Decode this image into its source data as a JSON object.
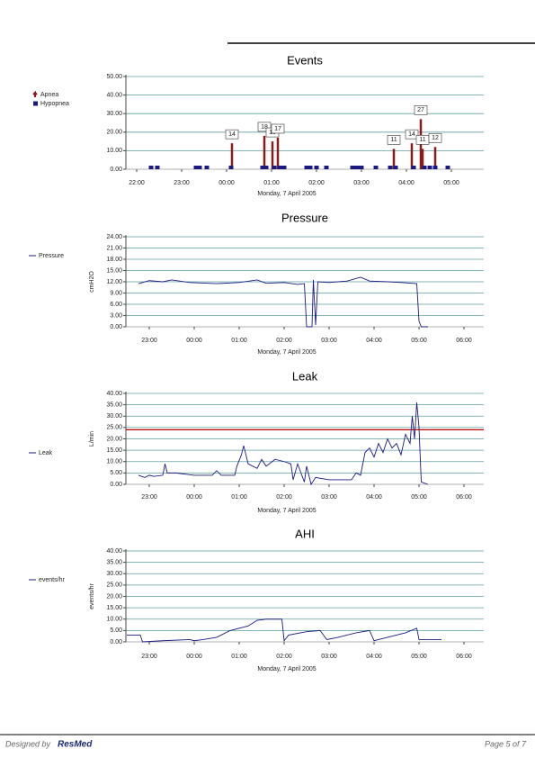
{
  "chart_data": [
    {
      "type": "stem",
      "title": "Events",
      "xlabel": "Monday, 7 April 2005",
      "xlim": [
        21.76,
        29.72
      ],
      "xticks": [
        {
          "value": 22,
          "label": "22:00"
        },
        {
          "value": 23,
          "label": "23:00"
        },
        {
          "value": 24,
          "label": "00:00"
        },
        {
          "value": 25,
          "label": "01:00"
        },
        {
          "value": 26,
          "label": "02:00"
        },
        {
          "value": 27,
          "label": "03:00"
        },
        {
          "value": 28,
          "label": "04:00"
        },
        {
          "value": 29,
          "label": "05:00"
        }
      ],
      "ylim": [
        0,
        50
      ],
      "yticks": [
        {
          "value": 0,
          "label": "0.00"
        },
        {
          "value": 10,
          "label": "10.00"
        },
        {
          "value": 20,
          "label": "20.00"
        },
        {
          "value": 30,
          "label": "30.00"
        },
        {
          "value": 40,
          "label": "40.00"
        },
        {
          "value": 50,
          "label": "50.00"
        }
      ],
      "grid": true,
      "series": [
        {
          "name": "Apnea",
          "color": "#8b1a1a",
          "marker": "stem",
          "x": [
            24.12,
            24.84,
            25.02,
            25.14,
            27.72,
            28.12,
            28.32,
            28.36,
            28.64
          ],
          "values": [
            14,
            18,
            15,
            17,
            11,
            14,
            27,
            11,
            12
          ]
        },
        {
          "name": "Hypopnea",
          "color": "#1a1a80",
          "marker": "square",
          "x": [
            22.32,
            22.46,
            23.32,
            23.4,
            23.56,
            24.1,
            24.8,
            24.88,
            25.06,
            25.18,
            25.28,
            25.78,
            25.86,
            26.0,
            26.22,
            26.8,
            26.9,
            27.0,
            27.32,
            27.64,
            27.76,
            28.16,
            28.4,
            28.52,
            28.64,
            28.92
          ],
          "values": [
            0,
            0,
            0,
            0,
            0,
            0,
            0,
            0,
            0,
            0,
            0,
            0,
            0,
            0,
            0,
            0,
            0,
            0,
            0,
            0,
            0,
            0,
            0,
            0,
            0,
            0
          ]
        }
      ]
    },
    {
      "type": "line",
      "title": "Pressure",
      "ylabel": "cmH2O",
      "xlabel": "Monday, 7 April 2005",
      "xlim": [
        22.48,
        30.44
      ],
      "xticks": [
        {
          "value": 23,
          "label": "23:00"
        },
        {
          "value": 24,
          "label": "00:00"
        },
        {
          "value": 25,
          "label": "01:00"
        },
        {
          "value": 26,
          "label": "02:00"
        },
        {
          "value": 27,
          "label": "03:00"
        },
        {
          "value": 28,
          "label": "04:00"
        },
        {
          "value": 29,
          "label": "05:00"
        },
        {
          "value": 30,
          "label": "06:00"
        }
      ],
      "ylim": [
        0,
        24
      ],
      "yticks": [
        {
          "value": 0,
          "label": "0.00"
        },
        {
          "value": 3,
          "label": "3.00"
        },
        {
          "value": 6,
          "label": "6.00"
        },
        {
          "value": 9,
          "label": "9.00"
        },
        {
          "value": 12,
          "label": "12.00"
        },
        {
          "value": 15,
          "label": "15.00"
        },
        {
          "value": 18,
          "label": "18.00"
        },
        {
          "value": 21,
          "label": "21.00"
        },
        {
          "value": 24,
          "label": "24.00"
        }
      ],
      "grid": true,
      "series": [
        {
          "name": "Pressure",
          "color": "#1a1a80",
          "x": [
            22.76,
            23.0,
            23.3,
            23.5,
            23.9,
            24.5,
            25.0,
            25.4,
            25.6,
            26.0,
            26.3,
            26.45,
            26.5,
            26.62,
            26.65,
            26.7,
            26.75,
            27.0,
            27.4,
            27.7,
            27.9,
            28.3,
            28.6,
            28.95,
            29.0,
            29.05,
            29.2
          ],
          "values": [
            11.5,
            12.3,
            12.0,
            12.5,
            11.8,
            11.5,
            11.8,
            12.5,
            11.6,
            11.8,
            11.3,
            11.5,
            0,
            0,
            12.5,
            0.5,
            12,
            11.8,
            12.2,
            13.2,
            12.2,
            12.0,
            11.8,
            11.5,
            1.5,
            0,
            0
          ]
        }
      ]
    },
    {
      "type": "line",
      "title": "Leak",
      "ylabel": "L/min",
      "xlabel": "Monday, 7 April 2005",
      "xlim": [
        22.48,
        30.44
      ],
      "xticks": [
        {
          "value": 23,
          "label": "23:00"
        },
        {
          "value": 24,
          "label": "00:00"
        },
        {
          "value": 25,
          "label": "01:00"
        },
        {
          "value": 26,
          "label": "02:00"
        },
        {
          "value": 27,
          "label": "03:00"
        },
        {
          "value": 28,
          "label": "04:00"
        },
        {
          "value": 29,
          "label": "05:00"
        },
        {
          "value": 30,
          "label": "06:00"
        }
      ],
      "ylim": [
        0,
        40
      ],
      "yticks": [
        {
          "value": 0,
          "label": "0.00"
        },
        {
          "value": 5,
          "label": "5.00"
        },
        {
          "value": 10,
          "label": "10.00"
        },
        {
          "value": 15,
          "label": "15.00"
        },
        {
          "value": 20,
          "label": "20.00"
        },
        {
          "value": 25,
          "label": "25.00"
        },
        {
          "value": 30,
          "label": "30.00"
        },
        {
          "value": 35,
          "label": "35.00"
        },
        {
          "value": 40,
          "label": "40.00"
        }
      ],
      "grid": true,
      "reference_line": {
        "value": 24,
        "color": "#c00000"
      },
      "series": [
        {
          "name": "Leak",
          "color": "#1a1a80",
          "x": [
            22.76,
            22.9,
            23.0,
            23.1,
            23.3,
            23.35,
            23.4,
            23.6,
            23.8,
            24.0,
            24.4,
            24.5,
            24.6,
            24.9,
            24.95,
            25.05,
            25.1,
            25.2,
            25.4,
            25.5,
            25.6,
            25.8,
            26.0,
            26.15,
            26.2,
            26.3,
            26.45,
            26.5,
            26.6,
            26.7,
            27.0,
            27.3,
            27.5,
            27.6,
            27.7,
            27.8,
            27.9,
            28.0,
            28.1,
            28.2,
            28.3,
            28.4,
            28.5,
            28.6,
            28.7,
            28.8,
            28.85,
            28.9,
            28.95,
            29.0,
            29.05,
            29.2
          ],
          "values": [
            4,
            3,
            4,
            3.5,
            4,
            9,
            5,
            5,
            4.5,
            4,
            4,
            6,
            4,
            4,
            8,
            13,
            17,
            9,
            7,
            11,
            8,
            11,
            10,
            9,
            2,
            9,
            1,
            8,
            0,
            3,
            2,
            2,
            2,
            5,
            4,
            14,
            16,
            12,
            18,
            14,
            20,
            16,
            18,
            13,
            22,
            18,
            30,
            20,
            36,
            25,
            1,
            0
          ]
        }
      ]
    },
    {
      "type": "line",
      "title": "AHI",
      "ylabel": "events/hr",
      "xlabel": "Monday, 7 April 2005",
      "xlim": [
        22.48,
        30.44
      ],
      "xticks": [
        {
          "value": 23,
          "label": "23:00"
        },
        {
          "value": 24,
          "label": "00:00"
        },
        {
          "value": 25,
          "label": "01:00"
        },
        {
          "value": 26,
          "label": "02:00"
        },
        {
          "value": 27,
          "label": "03:00"
        },
        {
          "value": 28,
          "label": "04:00"
        },
        {
          "value": 29,
          "label": "05:00"
        },
        {
          "value": 30,
          "label": "06:00"
        }
      ],
      "ylim": [
        0,
        40
      ],
      "yticks": [
        {
          "value": 0,
          "label": "0.00"
        },
        {
          "value": 5,
          "label": "5.00"
        },
        {
          "value": 10,
          "label": "10.00"
        },
        {
          "value": 15,
          "label": "15.00"
        },
        {
          "value": 20,
          "label": "20.00"
        },
        {
          "value": 25,
          "label": "25.00"
        },
        {
          "value": 30,
          "label": "30.00"
        },
        {
          "value": 35,
          "label": "35.00"
        },
        {
          "value": 40,
          "label": "40.00"
        }
      ],
      "grid": true,
      "series": [
        {
          "name": "events/hr",
          "color": "#1a1a80",
          "x": [
            22.5,
            22.8,
            22.85,
            23.3,
            23.9,
            24.0,
            24.2,
            24.5,
            24.8,
            25.2,
            25.4,
            25.6,
            25.95,
            26.0,
            26.1,
            26.5,
            26.8,
            26.95,
            27.2,
            27.6,
            27.9,
            28.0,
            28.3,
            28.7,
            28.95,
            29.0,
            29.5
          ],
          "values": [
            3,
            3,
            0,
            0.5,
            1,
            0.5,
            1,
            2,
            5,
            7,
            9.5,
            10,
            10,
            0.5,
            3,
            4.5,
            5,
            1,
            2,
            4,
            5,
            0.5,
            2,
            4,
            6,
            1,
            1
          ]
        }
      ]
    }
  ],
  "footer": {
    "designed_by": "Designed by",
    "brand": "ResMed",
    "page": "Page 5 of 7"
  }
}
